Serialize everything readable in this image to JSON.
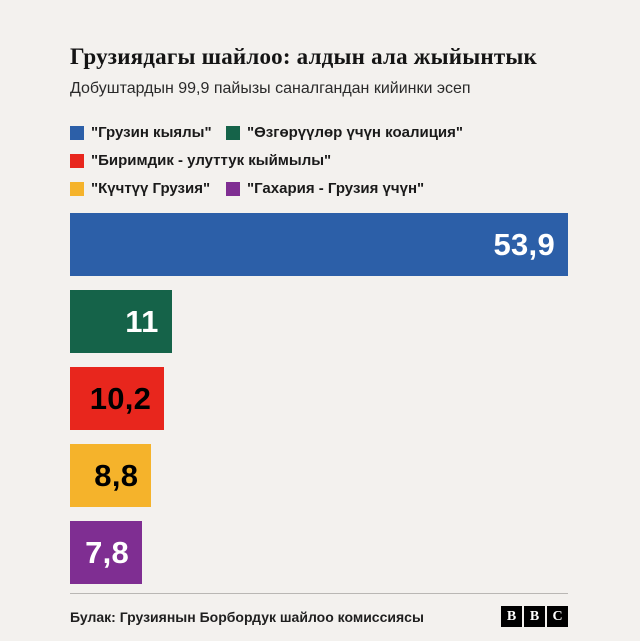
{
  "title": "Грузиядагы шайлоо: алдын ала жыйынтык",
  "subtitle": "Добуштардын 99,9 пайызы саналгандан кийинки эсеп",
  "legend": [
    {
      "label": "\"Грузин кыялы\"",
      "color": "#2c5fa8"
    },
    {
      "label": "\"Өзгөрүүлөр үчүн коалиция\"",
      "color": "#156349"
    },
    {
      "label": "\"Биримдик - улуттук кыймылы\"",
      "color": "#e8261d"
    },
    {
      "label": "\"Күчтүү Грузия\"",
      "color": "#f5b32b"
    },
    {
      "label": "\"Гахария - Грузия үчүн\"",
      "color": "#7f2e92"
    }
  ],
  "chart_data": {
    "type": "bar",
    "orientation": "horizontal",
    "title": "Грузиядагы шайлоо: алдын ала жыйынтык",
    "subtitle": "Добуштардын 99,9 пайызы саналгандан кийинки эсеп",
    "categories": [
      "\"Грузин кыялы\"",
      "\"Өзгөрүүлөр үчүн коалиция\"",
      "\"Биримдик - улуттук кыймылы\"",
      "\"Күчтүү Грузия\"",
      "\"Гахария - Грузия үчүн\""
    ],
    "values": [
      53.9,
      11,
      10.2,
      8.8,
      7.8
    ],
    "value_labels": [
      "53,9",
      "11",
      "10,2",
      "8,8",
      "7,8"
    ],
    "bar_colors": [
      "#2c5fa8",
      "#156349",
      "#e8261d",
      "#f5b32b",
      "#7f2e92"
    ],
    "value_label_colors": [
      "#ffffff",
      "#ffffff",
      "#000000",
      "#000000",
      "#ffffff"
    ],
    "xlim": [
      0,
      53.9
    ],
    "grid": false,
    "legend_position": "top"
  },
  "footer": {
    "source": "Булак: Грузиянын Борбордук шайлоо комиссиясы",
    "logo_blocks": [
      "B",
      "B",
      "C"
    ]
  }
}
